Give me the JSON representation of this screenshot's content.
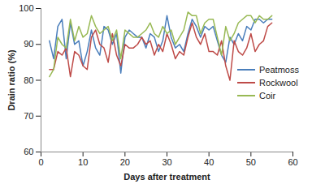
{
  "chart_data": {
    "type": "line",
    "x_label": "Days after treatment",
    "y_label": "Drain ratio (%)",
    "x": [
      2,
      3,
      4,
      5,
      6,
      7,
      8,
      9,
      10,
      11,
      12,
      13,
      14,
      15,
      16,
      17,
      18,
      19,
      20,
      21,
      22,
      23,
      24,
      25,
      26,
      27,
      28,
      29,
      30,
      31,
      32,
      33,
      34,
      35,
      36,
      37,
      38,
      39,
      40,
      41,
      42,
      43,
      44,
      45,
      46,
      47,
      48,
      49,
      50,
      51,
      52,
      53,
      54,
      55
    ],
    "series": [
      {
        "name": "Peatmoss",
        "color": "#4a7ebb",
        "values": [
          91,
          86,
          95,
          97,
          86,
          96,
          90,
          91,
          84,
          88,
          94,
          89,
          87,
          95,
          94,
          90,
          93,
          82,
          92,
          94,
          93,
          92,
          92,
          89,
          93,
          92,
          88,
          91,
          98,
          92,
          89,
          90,
          88,
          93,
          97,
          95,
          92,
          95,
          94,
          95,
          91,
          87,
          85,
          92,
          90,
          93,
          91,
          95,
          94,
          97,
          97,
          96,
          97,
          97
        ]
      },
      {
        "name": "Rockwool",
        "color": "#be4b48",
        "values": [
          83,
          83,
          88,
          87,
          89,
          81,
          88,
          87,
          84,
          83,
          92,
          94,
          90,
          89,
          85,
          93,
          87,
          84,
          90,
          89,
          89,
          90,
          92,
          90,
          91,
          87,
          90,
          88,
          93,
          90,
          86,
          88,
          87,
          92,
          96,
          92,
          90,
          93,
          88,
          88,
          87,
          91,
          84,
          80,
          91,
          88,
          87,
          89,
          93,
          88,
          90,
          91,
          95,
          96
        ]
      },
      {
        "name": "Coir",
        "color": "#98b954",
        "values": [
          81,
          83,
          92,
          90,
          89,
          97,
          91,
          95,
          92,
          93,
          98,
          95,
          93,
          94,
          95,
          91,
          94,
          86,
          94,
          93,
          92,
          92,
          93,
          94,
          96,
          93,
          92,
          95,
          93,
          94,
          90,
          92,
          94,
          99,
          98,
          98,
          93,
          96,
          97,
          97,
          92,
          87,
          95,
          91,
          93,
          96,
          97,
          98,
          98,
          96,
          98,
          97,
          97,
          98
        ]
      }
    ],
    "xlim": [
      0,
      60
    ],
    "xticks": [
      0,
      10,
      20,
      30,
      40,
      50,
      60
    ],
    "ylim": [
      60,
      100
    ],
    "yticks": [
      60,
      70,
      80,
      90,
      100
    ],
    "grid": false,
    "legend": "right"
  }
}
